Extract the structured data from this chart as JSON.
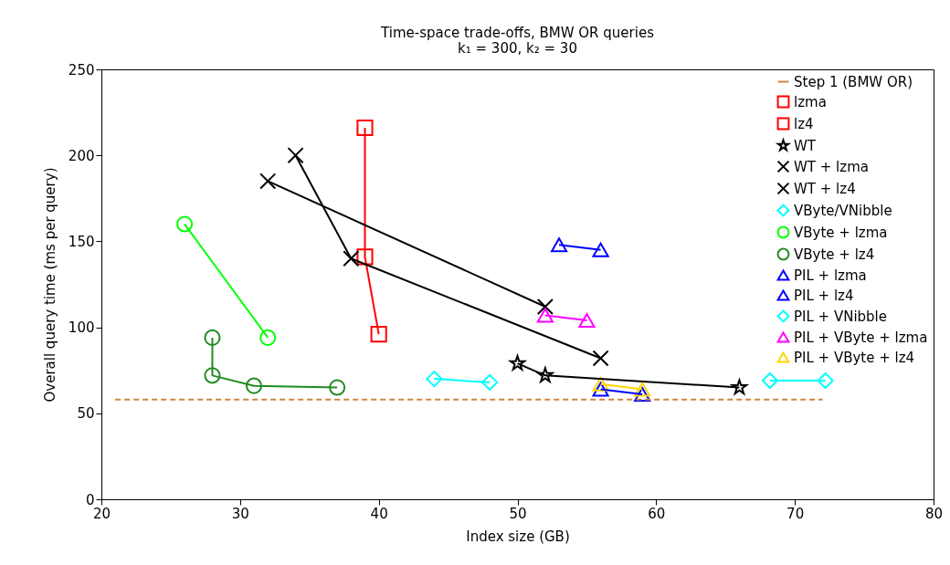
{
  "chart_data": {
    "type": "line",
    "title": "Time-space trade-offs, BMW OR queries",
    "subtitle": "k₁ = 300, k₂ = 30",
    "xlabel": "Index size (GB)",
    "ylabel": "Overall query time (ms per query)",
    "xlim": [
      20,
      80
    ],
    "xticks": [
      20,
      30,
      40,
      50,
      60,
      70,
      80
    ],
    "ylim": [
      0,
      250
    ],
    "yticks": [
      0,
      50,
      100,
      150,
      200,
      250
    ],
    "grid": false,
    "legend": "top right",
    "series": [
      {
        "name": "Step 1 (BMW OR)",
        "color": "#cd853f",
        "x": [
          21,
          72
        ],
        "values": [
          58,
          58
        ],
        "line_style": "dashed",
        "marker": "none"
      },
      {
        "name": "lzma",
        "color": "#ff0000",
        "marker": "square"
      },
      {
        "name": "lz4",
        "color": "#ff0000",
        "x": [
          39,
          39,
          40
        ],
        "values": [
          216,
          141,
          96
        ],
        "marker": "square"
      },
      {
        "name": "WT",
        "color": "#000000",
        "x": [
          50,
          52,
          66
        ],
        "values": [
          79,
          72,
          65
        ],
        "marker": "star"
      },
      {
        "name": "WT + lzma",
        "color": "#000000",
        "x": [
          32,
          52
        ],
        "values": [
          185,
          112
        ],
        "marker": "cross"
      },
      {
        "name": "WT + lz4",
        "color": "#000000",
        "x": [
          34,
          38,
          56
        ],
        "values": [
          200,
          140,
          82
        ],
        "marker": "cross"
      },
      {
        "name": "VByte/VNibble",
        "color": "#00ffff",
        "x": [
          44,
          48
        ],
        "values": [
          70,
          68
        ],
        "marker": "diamond"
      },
      {
        "name": "VByte + lzma",
        "color": "#00ff00",
        "x": [
          26,
          32
        ],
        "values": [
          160,
          94
        ],
        "marker": "circle"
      },
      {
        "name": "VByte + lz4",
        "color": "#228b22",
        "x": [
          28,
          28,
          31,
          37
        ],
        "values": [
          94,
          72,
          66,
          65
        ],
        "marker": "circle"
      },
      {
        "name": "PIL + lzma",
        "color": "#0000ff",
        "x": [
          53,
          56
        ],
        "values": [
          148,
          145
        ],
        "marker": "triangle"
      },
      {
        "name": "PIL + lz4",
        "color": "#0000ff",
        "x": [
          56,
          59
        ],
        "values": [
          64,
          61
        ],
        "marker": "triangle"
      },
      {
        "name": "PIL + VNibble",
        "color": "#00ffff",
        "x": [
          68.2,
          72.2
        ],
        "values": [
          69,
          69
        ],
        "marker": "diamond"
      },
      {
        "name": "PIL + VByte + lzma",
        "color": "#ff00ff",
        "x": [
          52,
          55
        ],
        "values": [
          107,
          104
        ],
        "marker": "triangle"
      },
      {
        "name": "PIL + VByte + lz4",
        "color": "#ffd700",
        "x": [
          56,
          59
        ],
        "values": [
          67,
          64
        ],
        "marker": "triangle"
      }
    ]
  }
}
